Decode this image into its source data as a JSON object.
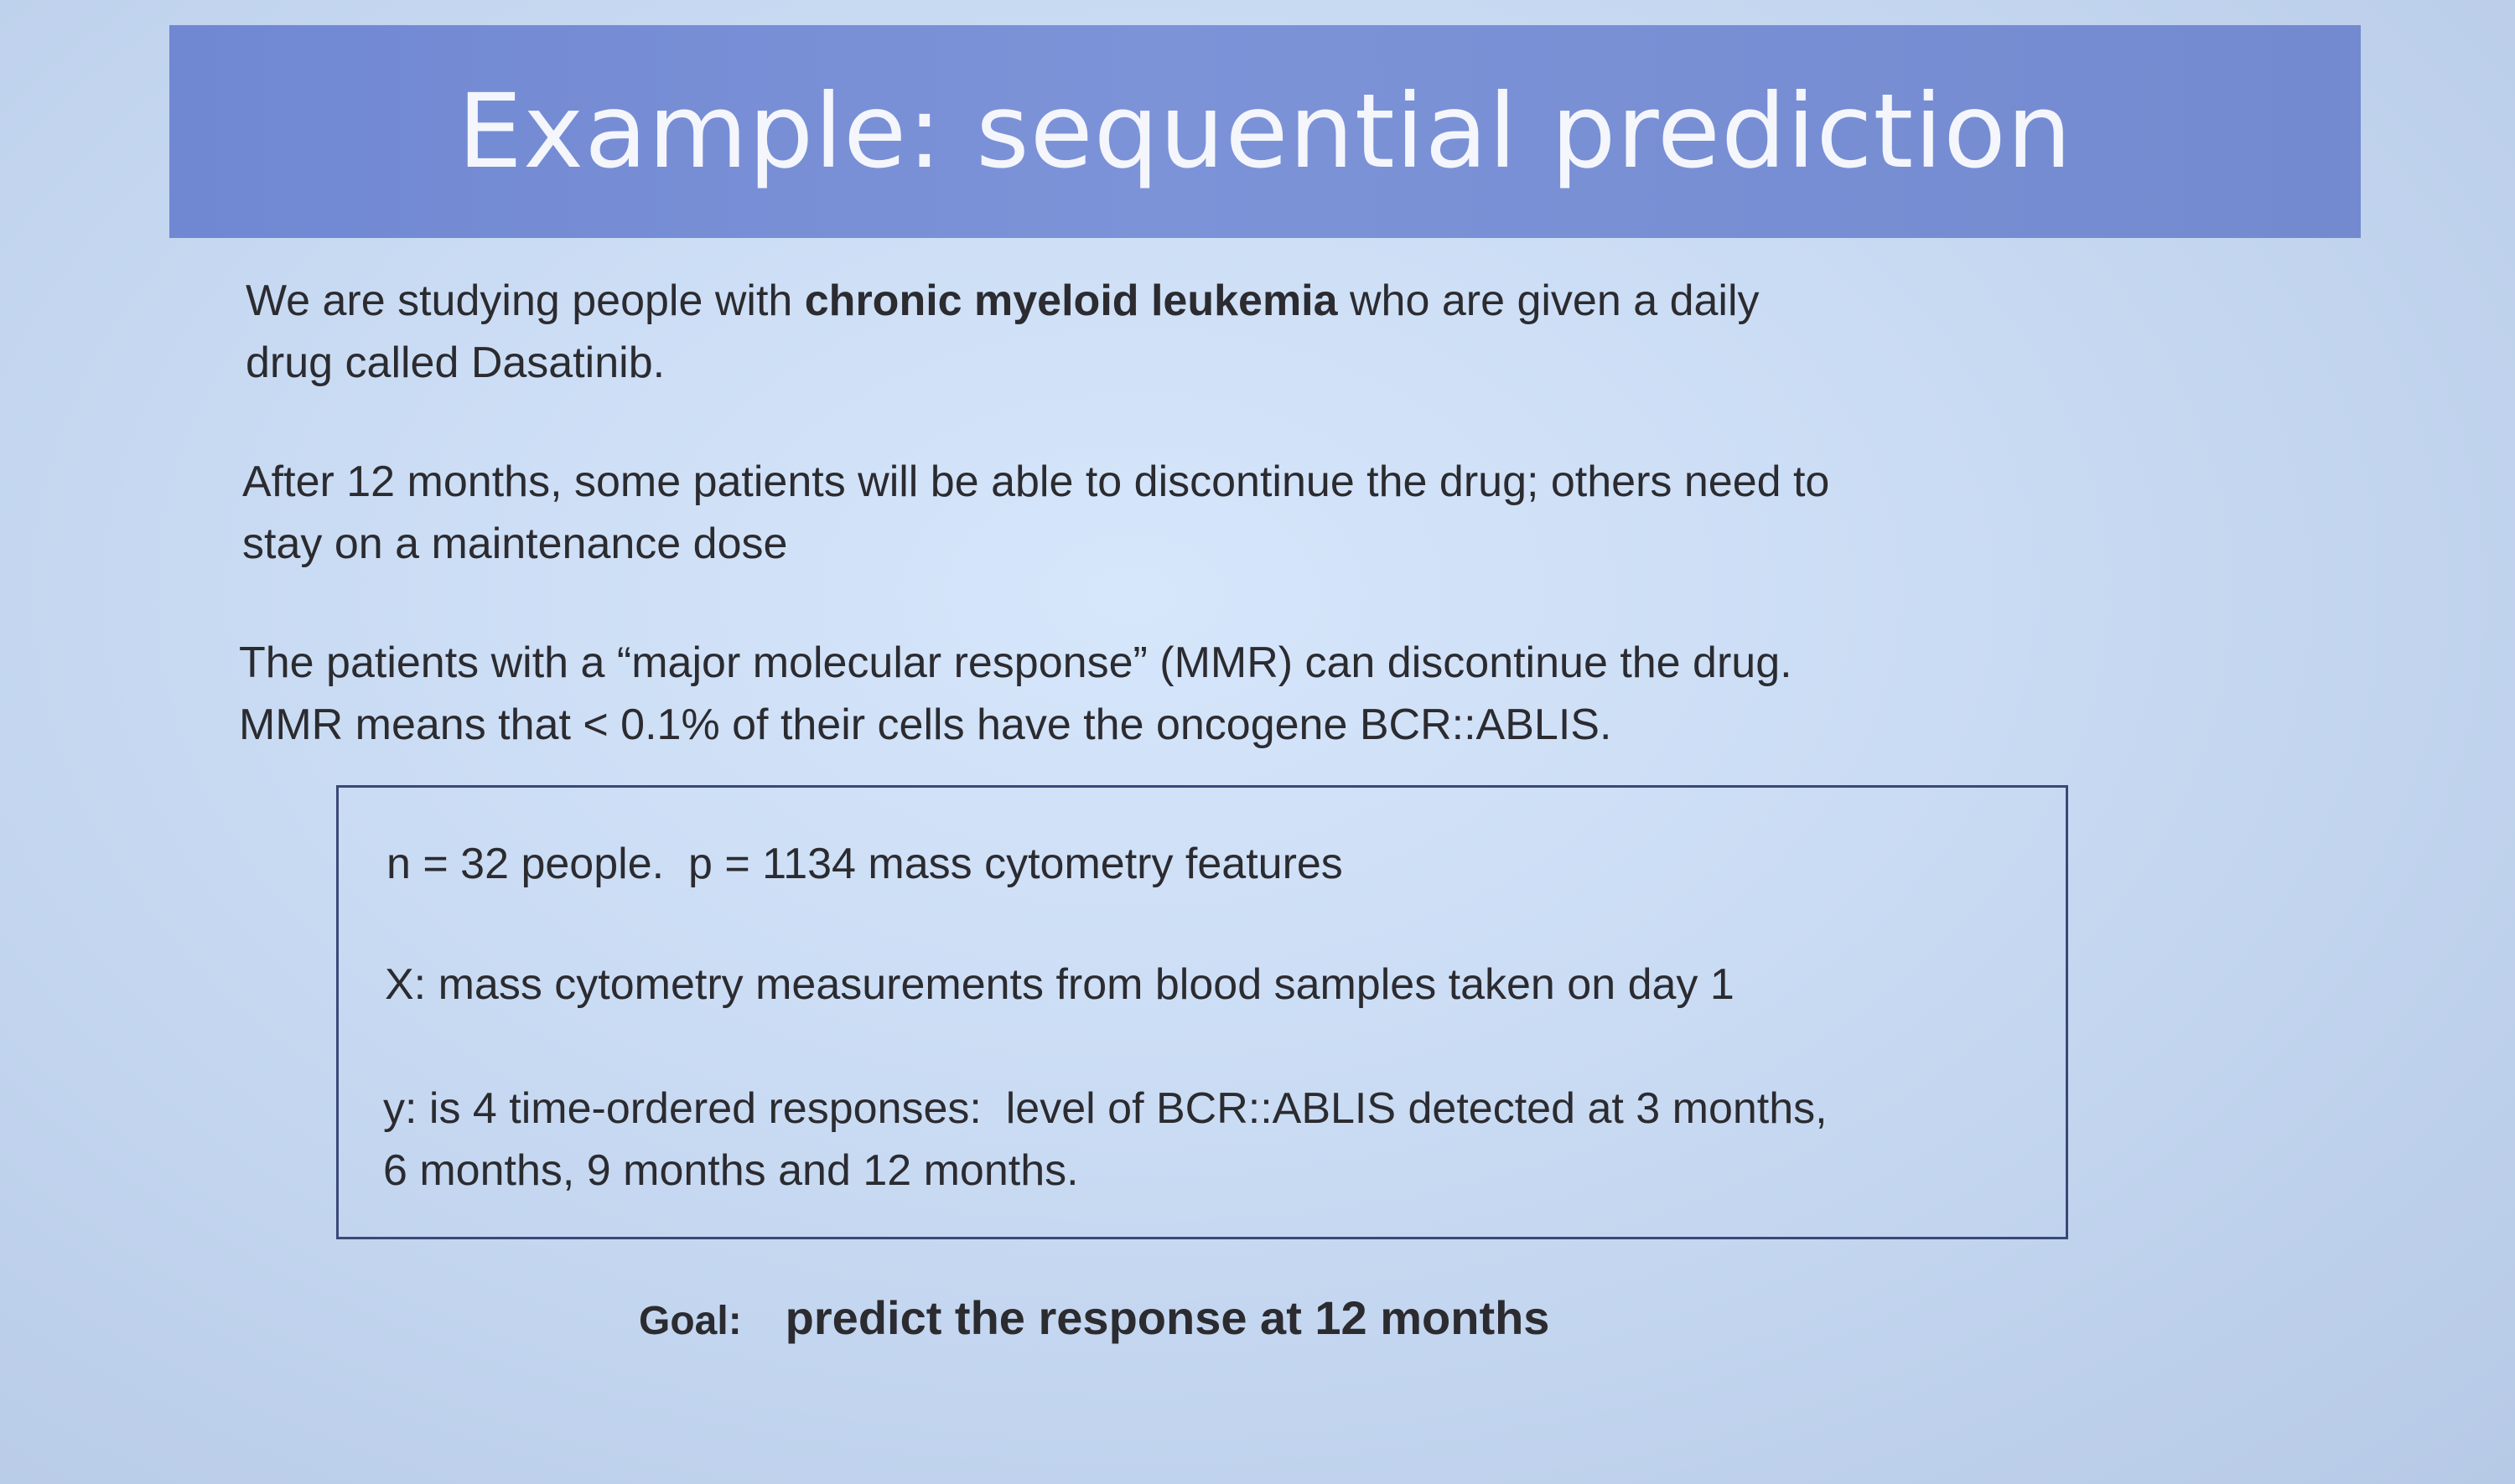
{
  "title": "Example: sequential prediction",
  "paragraphs": {
    "p1": {
      "pre": "We are studying people with ",
      "bold": "chronic myeloid leukemia",
      "post": " who are given a daily",
      "line2": "drug called Dasatinib."
    },
    "p2": {
      "line1": "After 12 months, some patients will be able to discontinue the drug; others need to",
      "line2": "stay on a maintenance dose"
    },
    "p3": {
      "line1": "The patients with a “major molecular response” (MMR) can discontinue the drug.",
      "line2": "MMR means that < 0.1% of their cells have the oncogene BCR::ABLIS."
    }
  },
  "box": {
    "line1": "n = 32 people.  p = 1134 mass cytometry features",
    "line2": "X: mass cytometry measurements from blood samples taken on day 1",
    "line3a": "y: is 4 time-ordered responses:  level of BCR::ABLIS detected at 3 months,",
    "line3b": "6 months, 9 months and 12 months."
  },
  "goal": {
    "label": "Goal:",
    "text": "predict the response at 12 months"
  }
}
